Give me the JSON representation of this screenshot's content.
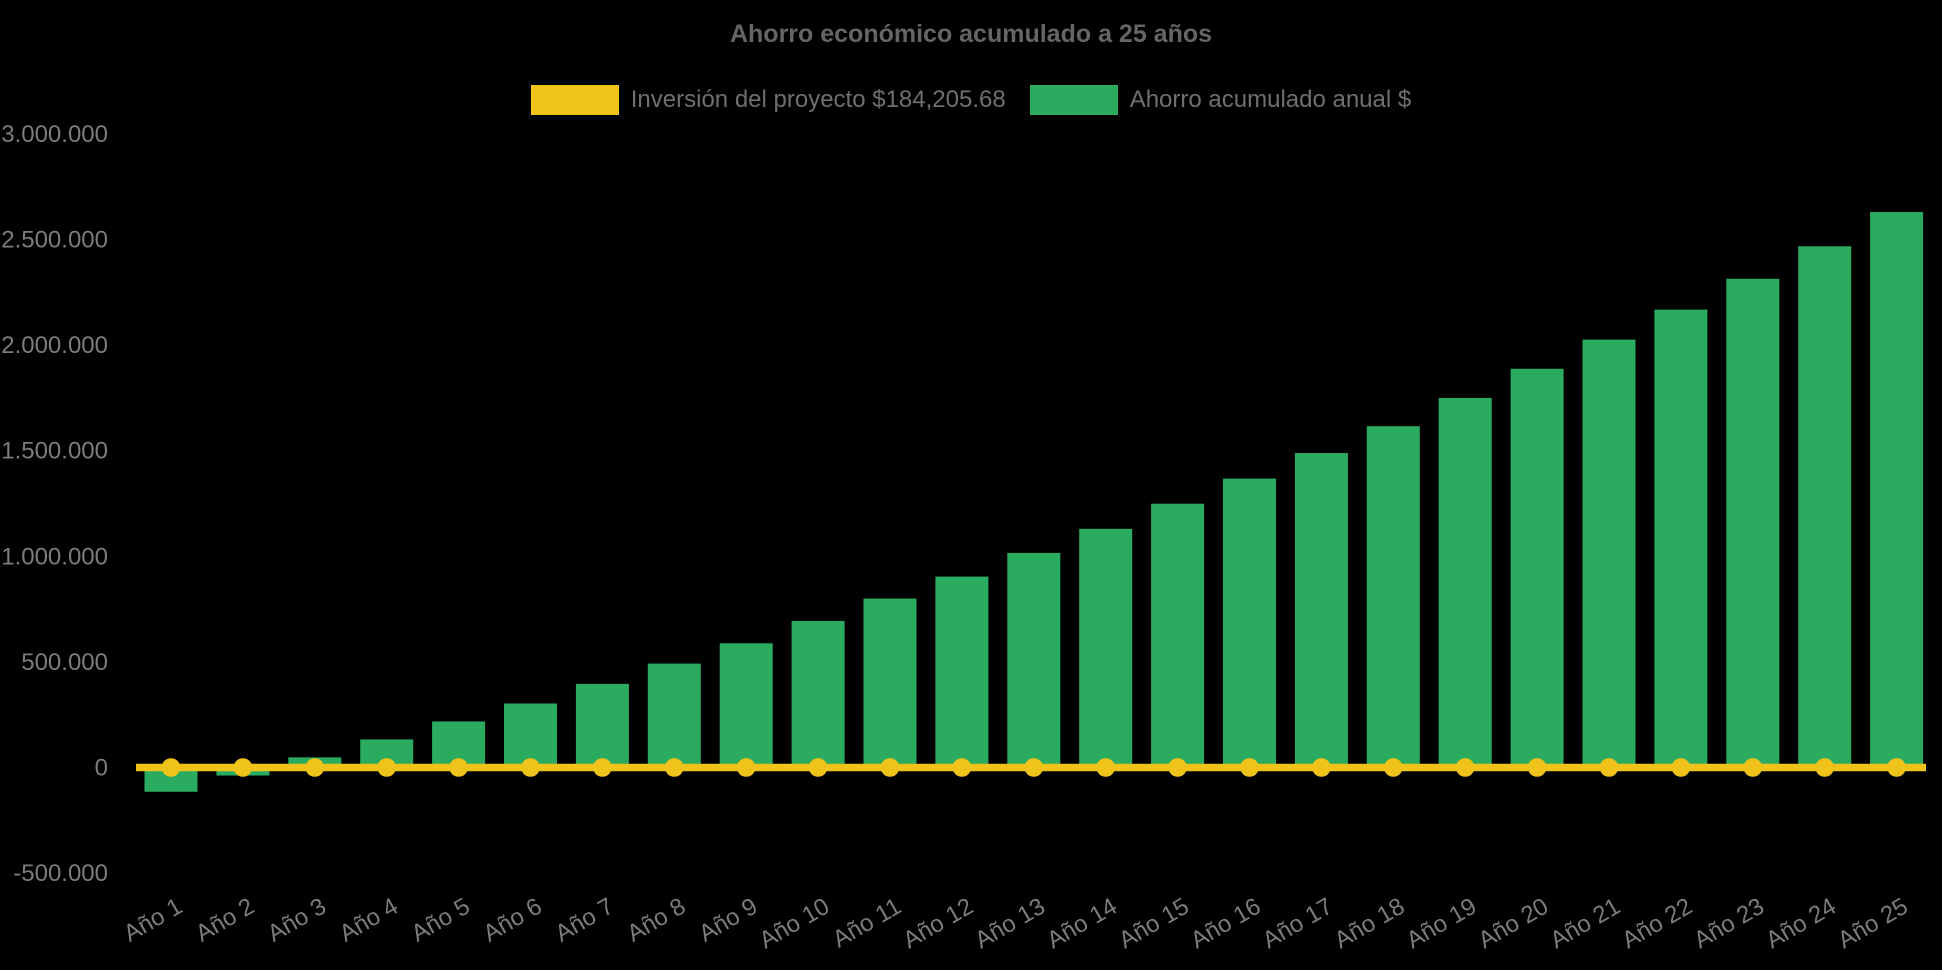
{
  "background": "#000000",
  "title": {
    "text": "Ahorro económico acumulado a 25 años",
    "color": "#656565"
  },
  "legend": [
    {
      "label": "Inversión del proyecto $184,205.68",
      "swatch_color": "#efc319",
      "series": "investment"
    },
    {
      "label": "Ahorro acumulado anual $",
      "swatch_color": "#2bab60",
      "series": "savings"
    }
  ],
  "colors": {
    "bar_green": "#2bab60",
    "line_yellow": "#efc319",
    "axis_text": "#7c7c7c",
    "title_text": "#656565",
    "legend_text": "#6f6f6f",
    "background": "#000000"
  },
  "chart_data": {
    "type": "bar",
    "title": "Ahorro económico acumulado a 25 años",
    "categories": [
      "Año 1",
      "Año 2",
      "Año 3",
      "Año 4",
      "Año 5",
      "Año 6",
      "Año 7",
      "Año 8",
      "Año 9",
      "Año 10",
      "Año 11",
      "Año 12",
      "Año 13",
      "Año 14",
      "Año 15",
      "Año 16",
      "Año 17",
      "Año 18",
      "Año 19",
      "Año 20",
      "Año 21",
      "Año 22",
      "Año 23",
      "Año 24",
      "Año 25"
    ],
    "series": [
      {
        "name": "Ahorro acumulado anual $",
        "type": "bar",
        "color": "#2bab60",
        "values": [
          -115000,
          -38000,
          48000,
          133000,
          218000,
          303000,
          396000,
          492000,
          588000,
          694000,
          800000,
          904000,
          1016000,
          1130000,
          1249000,
          1368000,
          1489000,
          1616000,
          1750000,
          1888000,
          2026000,
          2168000,
          2314000,
          2468000,
          2630000
        ]
      },
      {
        "name": "Inversión del proyecto $184,205.68",
        "type": "line",
        "color": "#efc319",
        "marker": "circle",
        "values": [
          0,
          0,
          0,
          0,
          0,
          0,
          0,
          0,
          0,
          0,
          0,
          0,
          0,
          0,
          0,
          0,
          0,
          0,
          0,
          0,
          0,
          0,
          0,
          0,
          0
        ]
      }
    ],
    "xlabel": "",
    "ylabel": "",
    "ylim": [
      -500000,
      3000000
    ],
    "y_ticks": [
      {
        "label": "3.000.000",
        "value": 3000000
      },
      {
        "label": "2.500.000",
        "value": 2500000
      },
      {
        "label": "2.000.000",
        "value": 2000000
      },
      {
        "label": "1.500.000",
        "value": 1500000
      },
      {
        "label": "1.000.000",
        "value": 1000000
      },
      {
        "label": "500.000",
        "value": 500000
      },
      {
        "label": "0",
        "value": 0
      },
      {
        "label": "-500.000",
        "value": -500000
      }
    ],
    "grid": false,
    "legend_position": "top",
    "x_tick_rotation_deg": -30
  }
}
